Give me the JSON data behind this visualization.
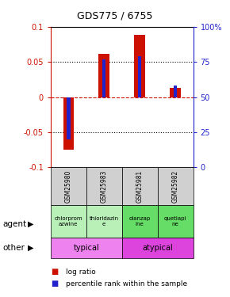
{
  "title": "GDS775 / 6755",
  "samples": [
    "GSM25980",
    "GSM25983",
    "GSM25981",
    "GSM25982"
  ],
  "log_ratios": [
    -0.075,
    0.062,
    0.088,
    0.013
  ],
  "percentile_ranks": [
    20,
    77,
    79,
    58
  ],
  "agent_texts": [
    "chlorprom\nazwine",
    "thioridazin\ne",
    "olanzap\nine",
    "quetiapi\nne"
  ],
  "agent_colors": [
    "#b8f0b8",
    "#b8f0b8",
    "#66dd66",
    "#66dd66"
  ],
  "typical_color": "#ee82ee",
  "atypical_color": "#dd44dd",
  "bar_color_red": "#cc1100",
  "bar_color_blue": "#2222cc",
  "ylim": [
    -0.1,
    0.1
  ],
  "yticks_left": [
    -0.1,
    -0.05,
    0,
    0.05,
    0.1
  ],
  "yticks_right_vals": [
    0,
    25,
    50,
    75,
    100
  ],
  "yticks_right_labels": [
    "0",
    "25",
    "50",
    "75",
    "100%"
  ]
}
